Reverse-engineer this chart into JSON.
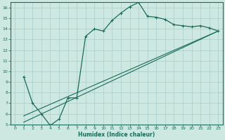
{
  "xlabel": "Humidex (Indice chaleur)",
  "background_color": "#cce8e0",
  "grid_color": "#aacccc",
  "line_color": "#1a6b5a",
  "xlim": [
    -0.5,
    23.5
  ],
  "ylim": [
    5,
    16.5
  ],
  "xticks": [
    0,
    1,
    2,
    3,
    4,
    5,
    6,
    7,
    8,
    9,
    10,
    11,
    12,
    13,
    14,
    15,
    16,
    17,
    18,
    19,
    20,
    21,
    22,
    23
  ],
  "yticks": [
    5,
    6,
    7,
    8,
    9,
    10,
    11,
    12,
    13,
    14,
    15,
    16
  ],
  "series1_x": [
    1,
    2,
    3,
    4,
    5,
    6,
    7,
    8,
    9,
    10,
    11,
    12,
    13,
    14,
    15,
    16,
    17,
    18,
    19,
    20,
    21,
    22,
    23
  ],
  "series1_y": [
    9.5,
    7.0,
    6.0,
    4.9,
    5.5,
    7.5,
    7.5,
    13.3,
    14.0,
    13.8,
    14.8,
    15.5,
    16.1,
    16.5,
    15.2,
    15.1,
    14.9,
    14.4,
    14.3,
    14.2,
    14.3,
    14.1,
    13.8
  ],
  "series2_x": [
    1,
    23
  ],
  "series2_y": [
    5.2,
    13.8
  ],
  "series3_x": [
    1,
    23
  ],
  "series3_y": [
    5.8,
    13.8
  ]
}
